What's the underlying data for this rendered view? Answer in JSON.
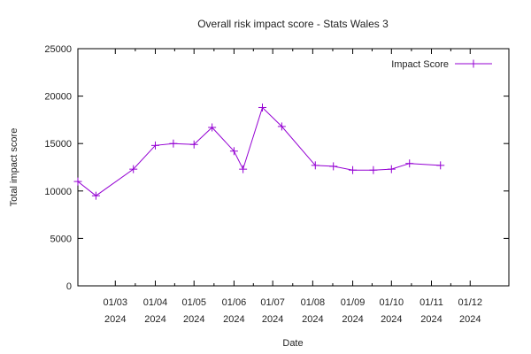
{
  "chart_data": {
    "type": "line",
    "title": "Overall risk impact score - Stats Wales 3",
    "xlabel": "Date",
    "ylabel": "Total impact score",
    "ylim": [
      0,
      25000
    ],
    "yticks": [
      0,
      5000,
      10000,
      15000,
      20000,
      25000
    ],
    "xlim": [
      "2024-02-01",
      "2024-12-31"
    ],
    "xticks": [
      {
        "date": "2024-03-01",
        "label_line1": "01/03",
        "label_line2": "2024"
      },
      {
        "date": "2024-04-01",
        "label_line1": "01/04",
        "label_line2": "2024"
      },
      {
        "date": "2024-05-01",
        "label_line1": "01/05",
        "label_line2": "2024"
      },
      {
        "date": "2024-06-01",
        "label_line1": "01/06",
        "label_line2": "2024"
      },
      {
        "date": "2024-07-01",
        "label_line1": "01/07",
        "label_line2": "2024"
      },
      {
        "date": "2024-08-01",
        "label_line1": "01/08",
        "label_line2": "2024"
      },
      {
        "date": "2024-09-01",
        "label_line1": "01/09",
        "label_line2": "2024"
      },
      {
        "date": "2024-10-01",
        "label_line1": "01/10",
        "label_line2": "2024"
      },
      {
        "date": "2024-11-01",
        "label_line1": "01/11",
        "label_line2": "2024"
      },
      {
        "date": "2024-12-01",
        "label_line1": "01/12",
        "label_line2": "2024"
      }
    ],
    "grid": false,
    "legend": "top-right",
    "series": [
      {
        "name": "Impact Score",
        "color": "#9400d3",
        "marker": "plus",
        "points": [
          {
            "x": "2024-02-01",
            "y": 11000
          },
          {
            "x": "2024-02-15",
            "y": 9500
          },
          {
            "x": "2024-03-15",
            "y": 12300
          },
          {
            "x": "2024-04-01",
            "y": 14800
          },
          {
            "x": "2024-04-15",
            "y": 15000
          },
          {
            "x": "2024-05-01",
            "y": 14900
          },
          {
            "x": "2024-05-15",
            "y": 16700
          },
          {
            "x": "2024-06-01",
            "y": 14200
          },
          {
            "x": "2024-06-08",
            "y": 12300
          },
          {
            "x": "2024-06-23",
            "y": 18800
          },
          {
            "x": "2024-07-08",
            "y": 16800
          },
          {
            "x": "2024-08-03",
            "y": 12700
          },
          {
            "x": "2024-08-17",
            "y": 12600
          },
          {
            "x": "2024-09-01",
            "y": 12200
          },
          {
            "x": "2024-09-17",
            "y": 12200
          },
          {
            "x": "2024-10-01",
            "y": 12300
          },
          {
            "x": "2024-10-15",
            "y": 12900
          },
          {
            "x": "2024-11-08",
            "y": 12700
          }
        ]
      }
    ]
  }
}
